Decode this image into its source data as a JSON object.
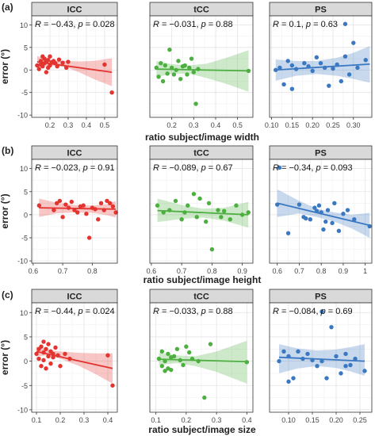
{
  "chart_data": [
    {
      "type": "scatter",
      "row_label": "(a)",
      "xlabel": "ratio subject/image width",
      "ylabel": "error (°)",
      "ylim": [
        -10.5,
        12
      ],
      "yticks": [
        -10,
        -5,
        0,
        5,
        10
      ],
      "panels": [
        {
          "title": "ICC",
          "color": "#E3342F",
          "stat_R": "−0.43",
          "stat_p": "0.028",
          "xlim": [
            0.1,
            0.57
          ],
          "xticks": [
            0.2,
            0.3,
            0.4,
            0.5
          ],
          "x": [
            0.13,
            0.14,
            0.15,
            0.15,
            0.16,
            0.16,
            0.17,
            0.17,
            0.18,
            0.18,
            0.19,
            0.19,
            0.2,
            0.2,
            0.21,
            0.22,
            0.23,
            0.24,
            0.25,
            0.27,
            0.29,
            0.3,
            0.5,
            0.54
          ],
          "y": [
            1.0,
            0.2,
            2.0,
            1.2,
            3.0,
            0.8,
            1.5,
            2.5,
            -0.5,
            1.8,
            2.2,
            0.5,
            1.0,
            3.0,
            1.7,
            2.0,
            1.5,
            0.8,
            2.3,
            1.6,
            0.5,
            1.8,
            1.2,
            -5.0
          ],
          "fit": [
            [
              0.13,
              1.8
            ],
            [
              0.54,
              -0.5
            ]
          ],
          "band": {
            "x": [
              0.13,
              0.2,
              0.28,
              0.36,
              0.44,
              0.54
            ],
            "lo": [
              0.5,
              1.0,
              0.7,
              -0.5,
              -2.0,
              -3.6
            ],
            "hi": [
              3.1,
              2.2,
              2.0,
              1.9,
              2.0,
              2.6
            ]
          }
        },
        {
          "title": "tCC",
          "color": "#4CAF3F",
          "stat_R": "−0.031",
          "stat_p": "0.88",
          "xlim": [
            0.1,
            0.57
          ],
          "xticks": [
            0.2,
            0.3,
            0.4,
            0.5
          ],
          "x": [
            0.13,
            0.14,
            0.15,
            0.16,
            0.17,
            0.18,
            0.19,
            0.2,
            0.21,
            0.22,
            0.23,
            0.24,
            0.25,
            0.26,
            0.27,
            0.28,
            0.29,
            0.3,
            0.31,
            0.32,
            0.55
          ],
          "y": [
            0.5,
            -1.5,
            1.5,
            -2.5,
            1.0,
            -0.8,
            4.5,
            0.5,
            -1.0,
            0.0,
            2.0,
            -2.0,
            0.8,
            1.0,
            -1.0,
            0.5,
            2.5,
            -0.5,
            -7.5,
            0.2,
            -0.2
          ],
          "fit": [
            [
              0.13,
              0.2
            ],
            [
              0.55,
              -0.2
            ]
          ],
          "band": {
            "x": [
              0.13,
              0.2,
              0.28,
              0.36,
              0.45,
              0.55
            ],
            "lo": [
              -1.6,
              -0.8,
              -0.8,
              -1.8,
              -3.1,
              -4.8
            ],
            "hi": [
              2.0,
              1.3,
              1.0,
              1.4,
              2.7,
              4.4
            ]
          }
        },
        {
          "title": "PS",
          "color": "#3A78C2",
          "stat_R": "0.1",
          "stat_p": "0.63",
          "xlim": [
            0.095,
            0.345
          ],
          "xticks": [
            0.1,
            0.15,
            0.2,
            0.25,
            0.3
          ],
          "x": [
            0.11,
            0.12,
            0.13,
            0.14,
            0.15,
            0.15,
            0.16,
            0.18,
            0.19,
            0.2,
            0.21,
            0.22,
            0.23,
            0.24,
            0.25,
            0.26,
            0.27,
            0.28,
            0.28,
            0.29,
            0.3,
            0.31,
            0.33
          ],
          "y": [
            0.0,
            0.5,
            -3.2,
            2.0,
            -4.2,
            1.0,
            0.2,
            1.5,
            0.8,
            -0.2,
            2.8,
            1.5,
            0.5,
            -3.5,
            0.3,
            1.2,
            -2.5,
            10.2,
            3.0,
            -1.0,
            6.0,
            0.5,
            2.2
          ],
          "fit": [
            [
              0.11,
              0.0
            ],
            [
              0.34,
              1.3
            ]
          ],
          "band": {
            "x": [
              0.11,
              0.16,
              0.21,
              0.26,
              0.3,
              0.34
            ],
            "lo": [
              -2.4,
              -1.3,
              -0.9,
              -1.3,
              -2.0,
              -2.8
            ],
            "hi": [
              2.3,
              2.0,
              2.0,
              2.7,
              3.8,
              5.3
            ]
          }
        }
      ]
    },
    {
      "type": "scatter",
      "row_label": "(b)",
      "xlabel": "ratio subject/image height",
      "ylabel": "error (°)",
      "ylim": [
        -10.5,
        12
      ],
      "yticks": [
        -10,
        -5,
        0,
        5,
        10
      ],
      "panels": [
        {
          "title": "ICC",
          "color": "#E3342F",
          "stat_R": "−0.023",
          "stat_p": "0.91",
          "xlim": [
            0.595,
            0.885
          ],
          "xticks": [
            0.6,
            0.7,
            0.8
          ],
          "x": [
            0.62,
            0.67,
            0.68,
            0.69,
            0.7,
            0.71,
            0.72,
            0.73,
            0.74,
            0.75,
            0.76,
            0.77,
            0.78,
            0.79,
            0.8,
            0.81,
            0.82,
            0.83,
            0.84,
            0.85,
            0.86,
            0.87,
            0.88
          ],
          "y": [
            2.0,
            1.0,
            2.5,
            3.0,
            -0.5,
            2.2,
            1.5,
            2.8,
            1.0,
            0.5,
            1.8,
            2.0,
            0.2,
            -5.0,
            1.5,
            1.2,
            -1.0,
            2.5,
            1.0,
            3.0,
            2.5,
            1.8,
            0.5
          ],
          "fit": [
            [
              0.62,
              1.5
            ],
            [
              0.88,
              1.2
            ]
          ],
          "band": {
            "x": [
              0.62,
              0.68,
              0.74,
              0.8,
              0.85,
              0.88
            ],
            "lo": [
              -0.5,
              0.3,
              0.5,
              0.4,
              -0.1,
              -0.6
            ],
            "hi": [
              3.5,
              2.6,
              2.1,
              2.0,
              2.3,
              3.0
            ]
          }
        },
        {
          "title": "tCC",
          "color": "#4CAF3F",
          "stat_R": "−0.089",
          "stat_p": "0.67",
          "xlim": [
            0.595,
            0.935
          ],
          "xticks": [
            0.6,
            0.7,
            0.8,
            0.9
          ],
          "x": [
            0.62,
            0.64,
            0.66,
            0.68,
            0.7,
            0.71,
            0.72,
            0.74,
            0.75,
            0.76,
            0.78,
            0.79,
            0.8,
            0.82,
            0.83,
            0.84,
            0.86,
            0.88,
            0.9,
            0.92
          ],
          "y": [
            2.0,
            0.5,
            1.0,
            3.0,
            -1.0,
            0.5,
            2.0,
            4.5,
            -0.5,
            3.5,
            -1.5,
            2.5,
            -7.5,
            1.0,
            -0.5,
            0.8,
            -1.0,
            2.0,
            0.0,
            0.5
          ],
          "fit": [
            [
              0.62,
              0.9
            ],
            [
              0.92,
              0.0
            ]
          ],
          "band": {
            "x": [
              0.62,
              0.7,
              0.77,
              0.84,
              0.92
            ],
            "lo": [
              -1.6,
              -0.9,
              -0.6,
              -1.3,
              -2.8
            ],
            "hi": [
              3.5,
              2.1,
              1.3,
              1.5,
              2.8
            ]
          }
        },
        {
          "title": "PS",
          "color": "#3A78C2",
          "stat_R": "−0.34",
          "stat_p": "0.093",
          "xlim": [
            0.565,
            1.03
          ],
          "xticks": [
            0.6,
            0.7,
            0.8,
            0.9,
            1.0
          ],
          "x": [
            0.6,
            0.61,
            0.65,
            0.7,
            0.72,
            0.73,
            0.75,
            0.77,
            0.78,
            0.79,
            0.8,
            0.81,
            0.82,
            0.83,
            0.85,
            0.86,
            0.88,
            0.9,
            0.92,
            0.95,
            1.02
          ],
          "y": [
            2.2,
            10.2,
            -4.0,
            2.2,
            -0.5,
            -0.8,
            -1.0,
            1.5,
            0.8,
            2.0,
            0.5,
            -3.2,
            -1.5,
            1.0,
            -1.8,
            2.5,
            -3.5,
            0.2,
            1.0,
            -1.0,
            -2.5
          ],
          "fit": [
            [
              0.6,
              2.5
            ],
            [
              1.02,
              -2.3
            ]
          ],
          "band": {
            "x": [
              0.6,
              0.7,
              0.78,
              0.86,
              0.94,
              1.02
            ],
            "lo": [
              -0.5,
              0.3,
              -0.5,
              -1.5,
              -3.0,
              -5.0
            ],
            "hi": [
              5.5,
              3.0,
              1.3,
              0.5,
              0.0,
              0.4
            ]
          }
        }
      ]
    },
    {
      "type": "scatter",
      "row_label": "(c)",
      "xlabel": "ratio subject/image size",
      "ylabel": "error (°)",
      "ylim": [
        -10.5,
        12
      ],
      "yticks": [
        -10,
        -5,
        0,
        5,
        10
      ],
      "panels": [
        {
          "title": "ICC",
          "color": "#E3342F",
          "stat_R": "−0.44",
          "stat_p": "0.024",
          "xlim": [
            0.08,
            0.44
          ],
          "xticks": [
            0.1,
            0.2,
            0.3,
            0.4
          ],
          "x": [
            0.1,
            0.11,
            0.11,
            0.12,
            0.12,
            0.13,
            0.13,
            0.13,
            0.14,
            0.14,
            0.15,
            0.15,
            0.16,
            0.16,
            0.17,
            0.17,
            0.18,
            0.19,
            0.2,
            0.22,
            0.24,
            0.4,
            0.42
          ],
          "y": [
            1.5,
            0.5,
            2.5,
            3.0,
            -1.0,
            1.8,
            4.0,
            0.2,
            2.5,
            -1.5,
            1.0,
            3.5,
            -0.5,
            2.0,
            1.5,
            0.8,
            2.8,
            1.2,
            -1.0,
            1.5,
            0.5,
            1.2,
            -5.0
          ],
          "fit": [
            [
              0.1,
              2.0
            ],
            [
              0.42,
              -1.5
            ]
          ],
          "band": {
            "x": [
              0.1,
              0.15,
              0.2,
              0.28,
              0.35,
              0.42
            ],
            "lo": [
              1.0,
              1.2,
              0.5,
              -1.0,
              -2.7,
              -4.6
            ],
            "hi": [
              3.0,
              2.3,
              2.0,
              1.7,
              1.6,
              1.6
            ]
          }
        },
        {
          "title": "tCC",
          "color": "#4CAF3F",
          "stat_R": "−0.033",
          "stat_p": "0.88",
          "xlim": [
            0.08,
            0.42
          ],
          "xticks": [
            0.1,
            0.2,
            0.3,
            0.4
          ],
          "x": [
            0.11,
            0.12,
            0.12,
            0.13,
            0.13,
            0.14,
            0.14,
            0.15,
            0.15,
            0.16,
            0.17,
            0.18,
            0.19,
            0.2,
            0.21,
            0.22,
            0.24,
            0.26,
            0.28,
            0.4
          ],
          "y": [
            0.5,
            -1.0,
            2.0,
            0.0,
            -2.0,
            1.5,
            -1.5,
            0.8,
            -1.8,
            1.0,
            2.5,
            0.2,
            -0.8,
            3.0,
            1.8,
            0.5,
            0.0,
            -7.5,
            3.5,
            -0.2
          ],
          "fit": [
            [
              0.11,
              0.4
            ],
            [
              0.4,
              -0.1
            ]
          ],
          "band": {
            "x": [
              0.11,
              0.17,
              0.23,
              0.3,
              0.4
            ],
            "lo": [
              -0.8,
              -0.4,
              -1.0,
              -2.2,
              -4.6
            ],
            "hi": [
              1.7,
              1.2,
              1.0,
              2.0,
              4.2
            ]
          }
        },
        {
          "title": "PS",
          "color": "#3A78C2",
          "stat_R": "−0.084",
          "stat_p": "0.69",
          "xlim": [
            0.06,
            0.275
          ],
          "xticks": [
            0.1,
            0.15,
            0.2,
            0.25
          ],
          "x": [
            0.08,
            0.09,
            0.1,
            0.1,
            0.11,
            0.12,
            0.13,
            0.14,
            0.15,
            0.16,
            0.17,
            0.17,
            0.18,
            0.19,
            0.2,
            0.21,
            0.22,
            0.22,
            0.23,
            0.24,
            0.26
          ],
          "y": [
            0.0,
            2.0,
            -4.2,
            1.0,
            -3.5,
            2.0,
            0.5,
            1.5,
            0.2,
            -1.0,
            10.2,
            0.0,
            -3.5,
            7.0,
            1.0,
            -2.5,
            -1.0,
            1.5,
            -0.8,
            0.5,
            -2.0
          ],
          "fit": [
            [
              0.08,
              0.8
            ],
            [
              0.26,
              0.0
            ]
          ],
          "band": {
            "x": [
              0.08,
              0.12,
              0.16,
              0.2,
              0.23,
              0.26
            ],
            "lo": [
              -2.5,
              -1.5,
              -1.0,
              -1.4,
              -2.1,
              -3.0
            ],
            "hi": [
              3.5,
              2.6,
              2.2,
              2.4,
              2.9,
              3.5
            ]
          }
        }
      ]
    }
  ]
}
